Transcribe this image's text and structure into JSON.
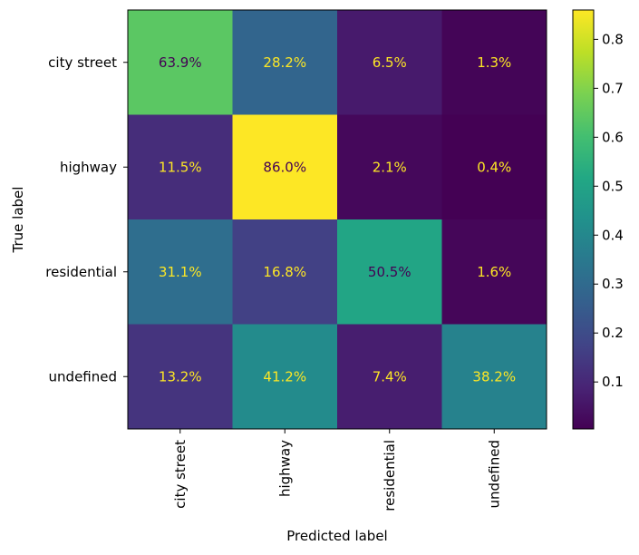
{
  "chart_data": {
    "type": "heatmap",
    "xlabel": "Predicted label",
    "ylabel": "True label",
    "x_categories": [
      "city street",
      "highway",
      "residential",
      "undefined"
    ],
    "y_categories": [
      "city street",
      "highway",
      "residential",
      "undefined"
    ],
    "values": [
      [
        0.639,
        0.282,
        0.065,
        0.013
      ],
      [
        0.115,
        0.86,
        0.021,
        0.004
      ],
      [
        0.311,
        0.168,
        0.505,
        0.016
      ],
      [
        0.132,
        0.412,
        0.074,
        0.382
      ]
    ],
    "cell_labels": [
      [
        "63.9%",
        "28.2%",
        "6.5%",
        "1.3%"
      ],
      [
        "11.5%",
        "86.0%",
        "2.1%",
        "0.4%"
      ],
      [
        "31.1%",
        "16.8%",
        "50.5%",
        "1.6%"
      ],
      [
        "13.2%",
        "41.2%",
        "7.4%",
        "38.2%"
      ]
    ],
    "colormap": "viridis",
    "colorbar": {
      "vmin": 0.004,
      "vmax": 0.86,
      "ticks": [
        0.1,
        0.2,
        0.3,
        0.4,
        0.5,
        0.6,
        0.7,
        0.8
      ],
      "tick_labels": [
        "0.1",
        "0.2",
        "0.3",
        "0.4",
        "0.5",
        "0.6",
        "0.7",
        "0.8"
      ]
    },
    "text_colors": {
      "light": "#fde725",
      "dark": "#440154"
    },
    "grid": false
  }
}
